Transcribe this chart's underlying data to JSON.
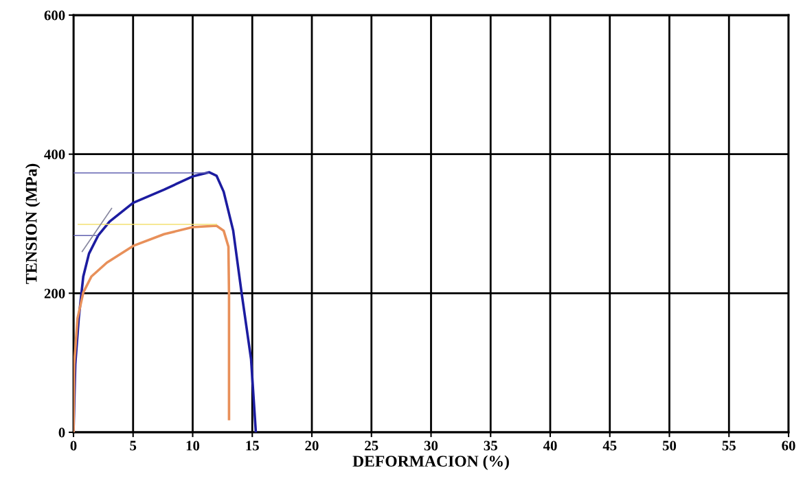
{
  "chart_data": {
    "type": "line",
    "xlabel": "DEFORMACION (%)",
    "ylabel": "TENSION (MPa)",
    "xlim": [
      0,
      60
    ],
    "ylim": [
      0,
      600
    ],
    "xticks": [
      0,
      5,
      10,
      15,
      20,
      25,
      30,
      35,
      40,
      45,
      50,
      55,
      60
    ],
    "yticks": [
      0,
      200,
      400,
      600
    ],
    "grid": true,
    "legend": false,
    "marker": "none",
    "line_style": "solid",
    "series": [
      {
        "color": "#1c1ca0",
        "x": [
          0,
          0.15,
          0.44,
          0.82,
          1.3,
          2.07,
          3.03,
          5,
          7.6,
          10,
          11.4,
          12.0,
          12.6,
          13.4,
          14.1,
          14.9,
          15.3
        ],
        "values": [
          0,
          98,
          164,
          224,
          257,
          283,
          303,
          330,
          349,
          368,
          374,
          369,
          346,
          290,
          201,
          105,
          0
        ]
      },
      {
        "color": "#e8905a",
        "x": [
          0,
          0.06,
          0.34,
          0.82,
          1.5,
          2.8,
          5,
          7.6,
          10,
          12.0,
          12.6,
          13.0,
          13.05,
          13.05
        ],
        "values": [
          0,
          98,
          164,
          201,
          224,
          244,
          268,
          285,
          295,
          297,
          290,
          267,
          197,
          19
        ]
      },
      {
        "color": "#f3e070",
        "x": [
          0.4,
          12
        ],
        "values": [
          299,
          299
        ]
      },
      {
        "color": "#6060b0",
        "x": [
          0,
          11.3
        ],
        "values": [
          373,
          373
        ]
      },
      {
        "color": "#6060b0",
        "x": [
          0,
          2
        ],
        "values": [
          283,
          283
        ]
      },
      {
        "color": "#8888a0",
        "x": [
          0.73,
          3.2
        ],
        "values": [
          260,
          322
        ]
      }
    ]
  }
}
